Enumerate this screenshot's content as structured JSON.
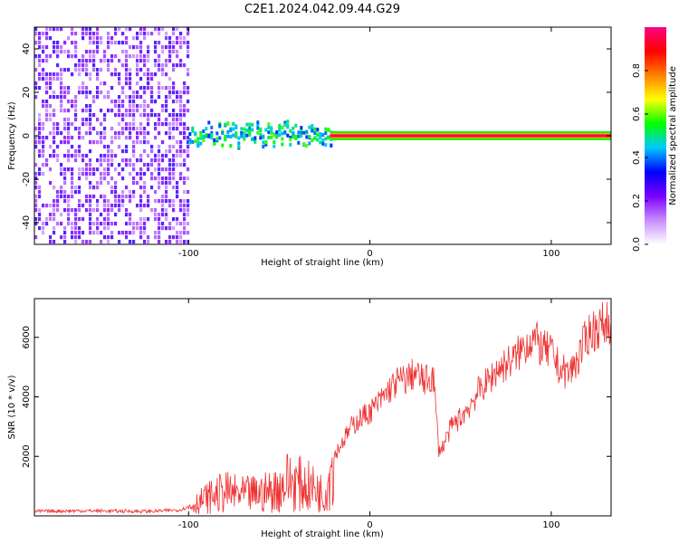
{
  "figure": {
    "title": "C2E1.2024.042.09.44.G29"
  },
  "chart_data": [
    {
      "type": "heatmap",
      "xlabel": "Height of straight line (km)",
      "ylabel": "Frequency (Hz)",
      "xlim": [
        -185,
        133
      ],
      "ylim": [
        -50,
        50
      ],
      "x_ticks": [
        -100,
        0,
        100
      ],
      "y_ticks": [
        -40,
        -20,
        0,
        20,
        40
      ],
      "grid": false,
      "colorbar": {
        "label": "Normalized spectral amplitude",
        "range": [
          0,
          1
        ],
        "ticks": [
          0.0,
          0.2,
          0.4,
          0.6,
          0.8
        ],
        "colors": [
          "#ffffff",
          "#c88cff",
          "#7a00ff",
          "#0000ff",
          "#00c8ff",
          "#00ff00",
          "#ffff00",
          "#ff8000",
          "#ff0000",
          "#ff0080"
        ]
      },
      "regions": [
        {
          "x": [
            -185,
            -100
          ],
          "freq": [
            -50,
            50
          ],
          "description_level": 0.1,
          "pattern": "broadband speckle"
        },
        {
          "x": [
            -100,
            -22
          ],
          "freq": [
            -8,
            8
          ],
          "description_level": 0.35,
          "pattern": "line near 0 Hz"
        },
        {
          "x": [
            -22,
            133
          ],
          "freq": [
            -1,
            1
          ],
          "description_level": 0.95,
          "pattern": "narrow line at 0 Hz"
        }
      ]
    },
    {
      "type": "line",
      "xlabel": "Height of straight line (km)",
      "ylabel": "SNR (10 * v/v)",
      "xlim": [
        -185,
        133
      ],
      "ylim": [
        0,
        7300
      ],
      "x_ticks": [
        -100,
        0,
        100
      ],
      "y_ticks": [
        2000,
        4000,
        6000
      ],
      "grid": false,
      "line_color": "#ee3333",
      "series": [
        {
          "x": [
            -185,
            -160,
            -140,
            -120,
            -105,
            -100,
            -90,
            -80,
            -70,
            -60,
            -50,
            -45,
            -40,
            -35,
            -30,
            -25,
            -20,
            -15,
            -10,
            -5,
            0,
            5,
            10,
            15,
            20,
            25,
            30,
            35,
            38,
            40,
            45,
            50,
            55,
            60,
            65,
            70,
            75,
            80,
            85,
            90,
            95,
            100,
            105,
            110,
            115,
            120,
            125,
            133
          ],
          "y": [
            150,
            170,
            160,
            150,
            200,
            300,
            600,
            800,
            700,
            750,
            900,
            1200,
            1100,
            1000,
            900,
            700,
            2000,
            2500,
            3000,
            3300,
            3500,
            3800,
            4200,
            4500,
            4600,
            4800,
            4500,
            4700,
            2200,
            2300,
            3000,
            3300,
            3700,
            4200,
            4500,
            4900,
            5100,
            5300,
            5700,
            6000,
            5600,
            5500,
            4900,
            4800,
            5300,
            6100,
            6300,
            6600
          ]
        }
      ]
    }
  ]
}
